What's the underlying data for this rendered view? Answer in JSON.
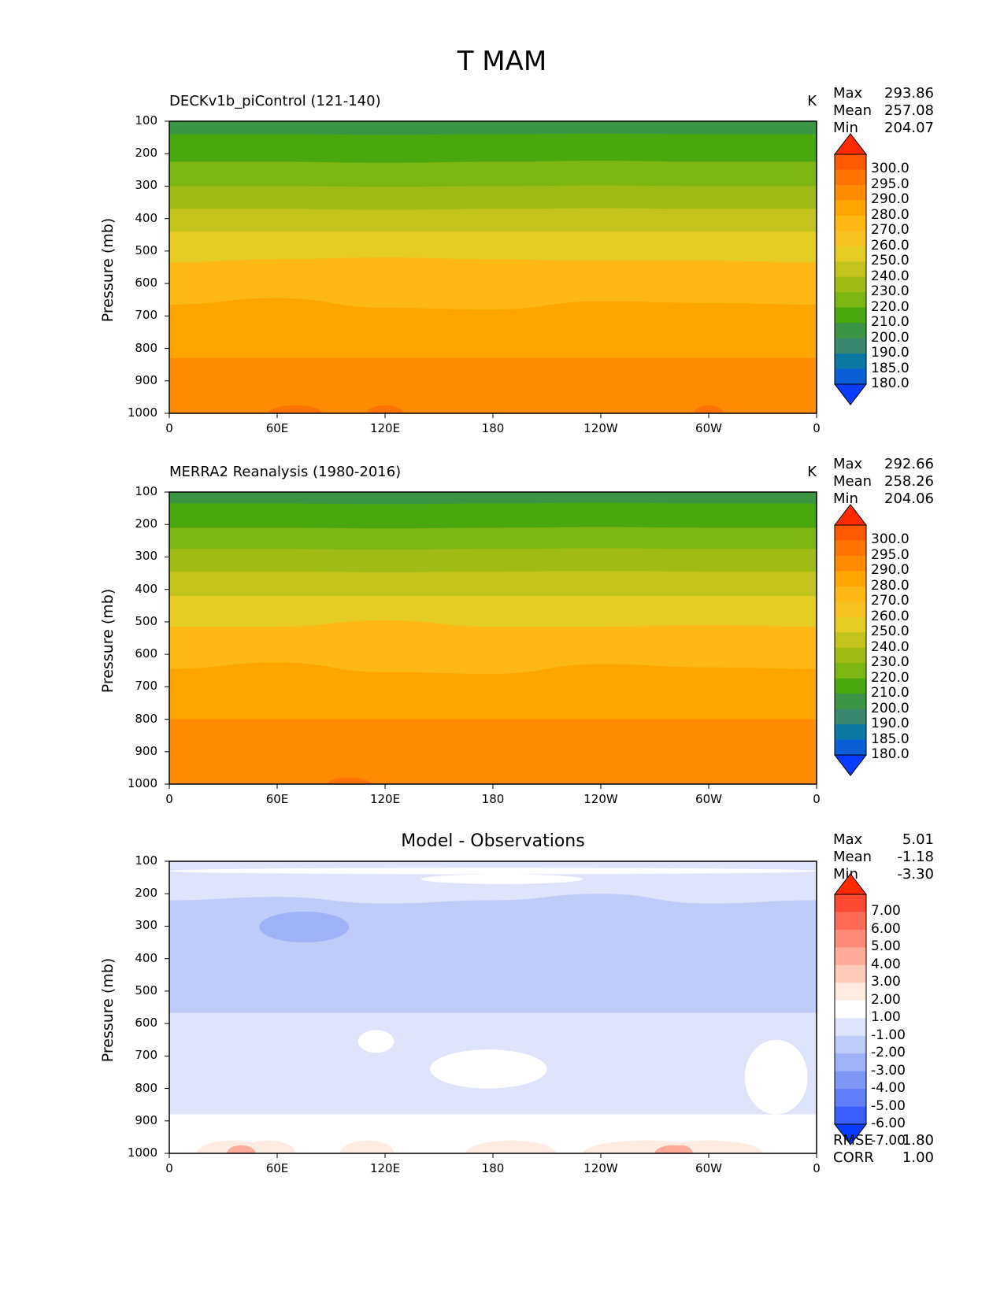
{
  "figure": {
    "title": "T MAM"
  },
  "chart_data": [
    {
      "type": "heatmap",
      "title": "DECKv1b_piControl (121-140)",
      "units": "K",
      "stats": {
        "max": "293.86",
        "mean": "257.08",
        "min": "204.07"
      },
      "xlabel": "",
      "ylabel": "Pressure (mb)",
      "x_ticks": [
        "0",
        "60E",
        "120E",
        "180",
        "120W",
        "60W",
        "0"
      ],
      "y_ticks": [
        "100",
        "200",
        "300",
        "400",
        "500",
        "600",
        "700",
        "800",
        "900",
        "1000"
      ],
      "xlim": [
        0,
        360
      ],
      "ylim": [
        100,
        1000
      ],
      "colorbar": {
        "levels": [
          "300.0",
          "295.0",
          "290.0",
          "280.0",
          "270.0",
          "260.0",
          "250.0",
          "240.0",
          "230.0",
          "220.0",
          "210.0",
          "200.0",
          "190.0",
          "185.0",
          "180.0"
        ],
        "colors": [
          "#ff2a00",
          "#ff5a00",
          "#ff7300",
          "#ff8c00",
          "#ffa500",
          "#fdb814",
          "#f7c21f",
          "#e6cd23",
          "#c2c31d",
          "#a1bb16",
          "#7db512",
          "#4aa80f",
          "#3a9644",
          "#3a8770",
          "#0a7aa5",
          "#0a5fd6",
          "#0a3cff"
        ]
      },
      "bands": [
        {
          "top": 100,
          "bottom": 140,
          "color": "#3a9644"
        },
        {
          "top": 140,
          "bottom": 225,
          "color": "#4aa80f",
          "wave": [
            0,
            0,
            2,
            0,
            -2,
            0,
            0
          ]
        },
        {
          "top": 225,
          "bottom": 300,
          "color": "#7db512",
          "wave": [
            0,
            0,
            3,
            0,
            -3,
            0,
            0
          ]
        },
        {
          "top": 300,
          "bottom": 370,
          "color": "#a1bb16",
          "wave": [
            0,
            0,
            2,
            0,
            -2,
            0,
            0
          ]
        },
        {
          "top": 370,
          "bottom": 440,
          "color": "#c2c31d",
          "wave": [
            0,
            0,
            3,
            0,
            -2,
            0,
            0
          ]
        },
        {
          "top": 440,
          "bottom": 535,
          "color": "#e6cd23",
          "wave": [
            0,
            0,
            0,
            0,
            0,
            0,
            0
          ]
        },
        {
          "top": 535,
          "bottom": 665,
          "color": "#fdb814",
          "wave": [
            0,
            -10,
            -15,
            -10,
            -5,
            -5,
            0
          ]
        },
        {
          "top": 665,
          "bottom": 830,
          "color": "#ffa500",
          "wave": [
            0,
            -20,
            10,
            15,
            -10,
            -5,
            0
          ]
        },
        {
          "top": 830,
          "bottom": 1000,
          "color": "#ff8c00",
          "wave": [
            0,
            0,
            0,
            0,
            0,
            0,
            0
          ]
        },
        {
          "top": 975,
          "bottom": 1000,
          "color": "#ff7300",
          "blobs": [
            [
              70,
              15
            ],
            [
              120,
              10
            ],
            [
              300,
              8
            ]
          ]
        }
      ]
    },
    {
      "type": "heatmap",
      "title": "MERRA2 Reanalysis (1980-2016)",
      "units": "K",
      "stats": {
        "max": "292.66",
        "mean": "258.26",
        "min": "204.06"
      },
      "xlabel": "",
      "ylabel": "Pressure (mb)",
      "x_ticks": [
        "0",
        "60E",
        "120E",
        "180",
        "120W",
        "60W",
        "0"
      ],
      "y_ticks": [
        "100",
        "200",
        "300",
        "400",
        "500",
        "600",
        "700",
        "800",
        "900",
        "1000"
      ],
      "xlim": [
        0,
        360
      ],
      "ylim": [
        100,
        1000
      ],
      "colorbar": {
        "levels": [
          "300.0",
          "295.0",
          "290.0",
          "280.0",
          "270.0",
          "260.0",
          "250.0",
          "240.0",
          "230.0",
          "220.0",
          "210.0",
          "200.0",
          "190.0",
          "185.0",
          "180.0"
        ],
        "colors": [
          "#ff2a00",
          "#ff5a00",
          "#ff7300",
          "#ff8c00",
          "#ffa500",
          "#fdb814",
          "#f7c21f",
          "#e6cd23",
          "#c2c31d",
          "#a1bb16",
          "#7db512",
          "#4aa80f",
          "#3a9644",
          "#3a8770",
          "#0a7aa5",
          "#0a5fd6",
          "#0a3cff"
        ]
      },
      "bands": [
        {
          "top": 100,
          "bottom": 135,
          "color": "#3a9644"
        },
        {
          "top": 135,
          "bottom": 210,
          "color": "#4aa80f",
          "wave": [
            0,
            0,
            2,
            0,
            -2,
            0,
            0
          ]
        },
        {
          "top": 210,
          "bottom": 275,
          "color": "#7db512",
          "wave": [
            0,
            0,
            2,
            0,
            -2,
            0,
            0
          ]
        },
        {
          "top": 275,
          "bottom": 345,
          "color": "#a1bb16",
          "wave": [
            0,
            0,
            2,
            0,
            -2,
            0,
            0
          ]
        },
        {
          "top": 345,
          "bottom": 420,
          "color": "#c2c31d",
          "wave": [
            0,
            0,
            2,
            0,
            -2,
            0,
            0
          ]
        },
        {
          "top": 420,
          "bottom": 515,
          "color": "#e6cd23",
          "wave": [
            0,
            0,
            0,
            0,
            0,
            0,
            0
          ]
        },
        {
          "top": 515,
          "bottom": 645,
          "color": "#fdb814",
          "wave": [
            0,
            0,
            -20,
            0,
            0,
            -5,
            0
          ]
        },
        {
          "top": 645,
          "bottom": 800,
          "color": "#ffa500",
          "wave": [
            0,
            -20,
            10,
            15,
            -15,
            -5,
            0
          ]
        },
        {
          "top": 800,
          "bottom": 1000,
          "color": "#ff8c00",
          "wave": [
            0,
            0,
            0,
            0,
            0,
            0,
            0
          ]
        },
        {
          "top": 980,
          "bottom": 1000,
          "color": "#ff7300",
          "blobs": [
            [
              100,
              12
            ]
          ]
        }
      ]
    },
    {
      "type": "heatmap",
      "title": "Model - Observations",
      "units": "",
      "stats": {
        "max": "5.01",
        "mean": "-1.18",
        "min": "-3.30"
      },
      "extra": {
        "rmse_label": "RMSE",
        "rmse": "1.80",
        "corr_label": "CORR",
        "corr": "1.00"
      },
      "xlabel": "",
      "ylabel": "Pressure (mb)",
      "x_ticks": [
        "0",
        "60E",
        "120E",
        "180",
        "120W",
        "60W",
        "0"
      ],
      "y_ticks": [
        "100",
        "200",
        "300",
        "400",
        "500",
        "600",
        "700",
        "800",
        "900",
        "1000"
      ],
      "xlim": [
        0,
        360
      ],
      "ylim": [
        100,
        1000
      ],
      "colorbar": {
        "levels": [
          "7.00",
          "6.00",
          "5.00",
          "4.00",
          "3.00",
          "2.00",
          "1.00",
          "-1.00",
          "-2.00",
          "-3.00",
          "-4.00",
          "-5.00",
          "-6.00",
          "-7.00"
        ],
        "colors": [
          "#ff2a00",
          "#fe4a33",
          "#fe6b55",
          "#fe8a77",
          "#feab99",
          "#fecbbb",
          "#feebe2",
          "#ffffff",
          "#dfe4fb",
          "#bfcbf9",
          "#9fb2f7",
          "#7f98f5",
          "#5f7ef9",
          "#3a5dff",
          "#0a3cff"
        ]
      },
      "bands": [
        {
          "top": 100,
          "bottom": 1000,
          "color": "#dfe4fb"
        },
        {
          "top": 220,
          "bottom": 470,
          "color": "#bfcbf9",
          "wave": [
            0,
            -10,
            10,
            0,
            -20,
            10,
            0
          ]
        },
        {
          "top": 255,
          "bottom": 350,
          "color": "#9fb2f7",
          "span": [
            50,
            100
          ]
        },
        {
          "top": 120,
          "bottom": 140,
          "color": "#ffffff",
          "span": [
            0,
            360
          ]
        },
        {
          "top": 140,
          "bottom": 170,
          "color": "#ffffff",
          "span": [
            140,
            230
          ]
        },
        {
          "top": 680,
          "bottom": 800,
          "color": "#ffffff",
          "span": [
            145,
            210
          ]
        },
        {
          "top": 620,
          "bottom": 690,
          "color": "#ffffff",
          "span": [
            105,
            125
          ]
        },
        {
          "top": 650,
          "bottom": 880,
          "color": "#ffffff",
          "span": [
            320,
            355
          ]
        },
        {
          "top": 880,
          "bottom": 1000,
          "color": "#ffffff"
        },
        {
          "top": 960,
          "bottom": 1000,
          "color": "#feebe2",
          "blobs": [
            [
              35,
              20
            ],
            [
              55,
              15
            ],
            [
              110,
              15
            ],
            [
              190,
              25
            ],
            [
              265,
              35
            ],
            [
              300,
              30
            ]
          ]
        },
        {
          "top": 975,
          "bottom": 1000,
          "color": "#feab99",
          "blobs": [
            [
              40,
              8
            ],
            [
              280,
              10
            ],
            [
              285,
              6
            ]
          ]
        }
      ]
    }
  ]
}
